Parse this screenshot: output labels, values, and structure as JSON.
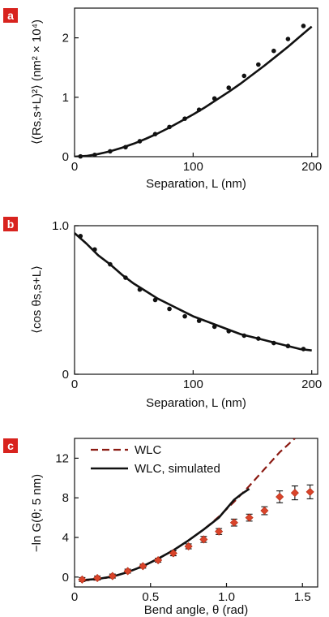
{
  "colors": {
    "badge": "#d8231e",
    "curve": "#111111",
    "marker": "#111111",
    "wlc_dashed": "#8b1a12",
    "diamond": "#d9442a"
  },
  "chart_data": [
    {
      "panel": "a",
      "type": "scatter",
      "xlabel": "Separation, L (nm)",
      "ylabel": "⟨(Rs,s+L)²⟩ (nm² × 10⁴)",
      "xlim": [
        0,
        205
      ],
      "ylim": [
        0,
        2.5
      ],
      "xticks": [
        0,
        100,
        200
      ],
      "yticks": [
        0,
        1,
        2
      ],
      "grid": false,
      "series": [
        {
          "style": "points",
          "x": [
            5,
            17,
            30,
            43,
            55,
            68,
            80,
            93,
            105,
            118,
            130,
            143,
            155,
            168,
            180,
            193
          ],
          "y": [
            0.005,
            0.03,
            0.09,
            0.16,
            0.26,
            0.38,
            0.5,
            0.64,
            0.79,
            0.98,
            1.16,
            1.36,
            1.55,
            1.78,
            1.98,
            2.2
          ]
        },
        {
          "style": "curve",
          "x": [
            0,
            10,
            20,
            30,
            40,
            50,
            60,
            70,
            80,
            90,
            100,
            110,
            120,
            130,
            140,
            150,
            160,
            170,
            180,
            190,
            200
          ],
          "y": [
            0,
            0.012,
            0.045,
            0.09,
            0.15,
            0.22,
            0.3,
            0.39,
            0.49,
            0.6,
            0.71,
            0.83,
            0.96,
            1.09,
            1.23,
            1.38,
            1.53,
            1.69,
            1.85,
            2.02,
            2.19
          ]
        }
      ]
    },
    {
      "panel": "b",
      "type": "scatter",
      "xlabel": "Separation, L (nm)",
      "ylabel": "⟨cos θs,s+L⟩",
      "xlim": [
        0,
        205
      ],
      "ylim": [
        0,
        1.0
      ],
      "xticks": [
        0,
        100,
        200
      ],
      "yticks": [
        0,
        1.0
      ],
      "ytick_labels": [
        "0",
        "1.0"
      ],
      "grid": false,
      "series": [
        {
          "style": "points",
          "x": [
            5,
            17,
            30,
            43,
            55,
            68,
            80,
            93,
            105,
            118,
            130,
            143,
            155,
            168,
            180,
            193
          ],
          "y": [
            0.93,
            0.84,
            0.74,
            0.65,
            0.57,
            0.5,
            0.44,
            0.39,
            0.36,
            0.32,
            0.29,
            0.26,
            0.24,
            0.21,
            0.19,
            0.17
          ]
        },
        {
          "style": "curve",
          "x": [
            0,
            10,
            20,
            30,
            40,
            50,
            60,
            70,
            80,
            90,
            100,
            110,
            120,
            130,
            140,
            150,
            160,
            170,
            180,
            190,
            200
          ],
          "y": [
            0.95,
            0.88,
            0.8,
            0.74,
            0.67,
            0.61,
            0.56,
            0.51,
            0.47,
            0.43,
            0.39,
            0.36,
            0.33,
            0.3,
            0.27,
            0.25,
            0.23,
            0.21,
            0.19,
            0.17,
            0.16
          ]
        }
      ]
    },
    {
      "panel": "c",
      "type": "line",
      "xlabel": "Bend angle, θ (rad)",
      "ylabel": "−ln G(θ; 5 nm)",
      "xlim": [
        0,
        1.6
      ],
      "ylim": [
        -1,
        14
      ],
      "xticks": [
        0,
        0.5,
        1.0,
        1.5
      ],
      "xtick_labels": [
        "0",
        "0.5",
        "1.0",
        "1.5"
      ],
      "yticks": [
        0,
        4,
        8,
        12
      ],
      "grid": false,
      "legend": "top-left",
      "series": [
        {
          "name": "WLC",
          "style": "dashed",
          "x": [
            0.05,
            0.15,
            0.25,
            0.35,
            0.45,
            0.55,
            0.65,
            0.75,
            0.85,
            0.95,
            1.05,
            1.15,
            1.25,
            1.35,
            1.45
          ],
          "y": [
            -0.35,
            -0.25,
            0.05,
            0.5,
            1.1,
            1.85,
            2.7,
            3.7,
            4.8,
            6.1,
            7.6,
            9.2,
            10.9,
            12.6,
            14.0
          ]
        },
        {
          "name": "WLC, simulated",
          "style": "solid",
          "x": [
            0.05,
            0.15,
            0.25,
            0.35,
            0.45,
            0.55,
            0.65,
            0.75,
            0.85,
            0.95,
            1.05,
            1.1,
            1.15
          ],
          "y": [
            -0.3,
            -0.2,
            0.05,
            0.5,
            1.1,
            1.85,
            2.7,
            3.7,
            4.8,
            6.0,
            7.8,
            8.4,
            8.9
          ]
        },
        {
          "style": "diamonds",
          "x": [
            0.05,
            0.15,
            0.25,
            0.35,
            0.45,
            0.55,
            0.65,
            0.75,
            0.85,
            0.95,
            1.05,
            1.15,
            1.25,
            1.35,
            1.45,
            1.55
          ],
          "y": [
            -0.25,
            -0.1,
            0.1,
            0.6,
            1.1,
            1.7,
            2.4,
            3.1,
            3.8,
            4.6,
            5.5,
            6.0,
            6.7,
            8.1,
            8.5,
            8.6
          ],
          "err": [
            0.2,
            0.2,
            0.2,
            0.2,
            0.2,
            0.2,
            0.25,
            0.25,
            0.3,
            0.3,
            0.35,
            0.35,
            0.4,
            0.6,
            0.7,
            0.7
          ]
        }
      ]
    }
  ]
}
